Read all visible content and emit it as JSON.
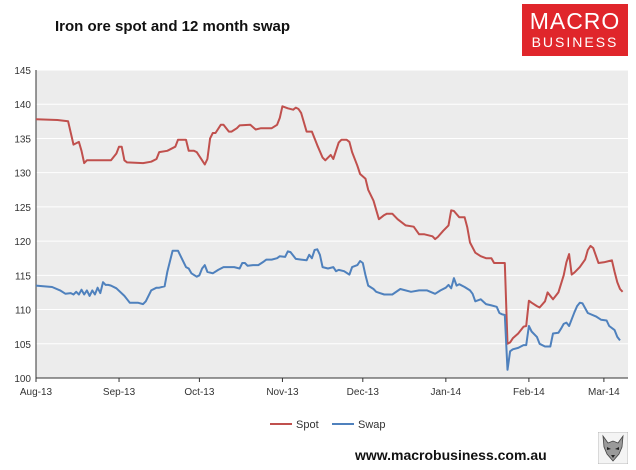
{
  "chart_data": {
    "type": "line",
    "title": "Iron ore spot and 12 month swap",
    "xlabel": "",
    "ylabel": "",
    "ylim": [
      100,
      145
    ],
    "yticks": [
      100,
      105,
      110,
      115,
      120,
      125,
      130,
      135,
      140,
      145
    ],
    "x_range": [
      0,
      221
    ],
    "x_ticks": [
      {
        "label": "Aug-13",
        "pos": 0
      },
      {
        "label": "Sep-13",
        "pos": 31
      },
      {
        "label": "Oct-13",
        "pos": 61
      },
      {
        "label": "Nov-13",
        "pos": 92
      },
      {
        "label": "Dec-13",
        "pos": 122
      },
      {
        "label": "Jan-14",
        "pos": 153
      },
      {
        "label": "Feb-14",
        "pos": 184
      },
      {
        "label": "Mar-14",
        "pos": 212
      }
    ],
    "grid": true,
    "legend": "bottom-center",
    "series": [
      {
        "name": "Spot",
        "color": "#c0504d",
        "points": [
          [
            0,
            137.8
          ],
          [
            8,
            137.7
          ],
          [
            12,
            137.5
          ],
          [
            14,
            134.1
          ],
          [
            16,
            134.5
          ],
          [
            17,
            133.2
          ],
          [
            18,
            131.4
          ],
          [
            19,
            131.8
          ],
          [
            25,
            131.8
          ],
          [
            28,
            131.8
          ],
          [
            30,
            132.8
          ],
          [
            31,
            133.8
          ],
          [
            32,
            133.8
          ],
          [
            33,
            131.8
          ],
          [
            34,
            131.5
          ],
          [
            40,
            131.4
          ],
          [
            43,
            131.6
          ],
          [
            45,
            132.0
          ],
          [
            46,
            133.0
          ],
          [
            49,
            133.2
          ],
          [
            52,
            133.8
          ],
          [
            53,
            134.8
          ],
          [
            56,
            134.8
          ],
          [
            57,
            133.2
          ],
          [
            59,
            133.2
          ],
          [
            60,
            133.0
          ],
          [
            62,
            131.8
          ],
          [
            63,
            131.2
          ],
          [
            64,
            132.0
          ],
          [
            65,
            135.0
          ],
          [
            66,
            135.8
          ],
          [
            67,
            135.8
          ],
          [
            69,
            137.0
          ],
          [
            70,
            137.0
          ],
          [
            72,
            136.0
          ],
          [
            73,
            136.0
          ],
          [
            75,
            136.5
          ],
          [
            76,
            136.9
          ],
          [
            80,
            137.0
          ],
          [
            82,
            136.3
          ],
          [
            84,
            136.5
          ],
          [
            86,
            136.5
          ],
          [
            88,
            136.5
          ],
          [
            90,
            137.0
          ],
          [
            91,
            138.0
          ],
          [
            92,
            139.7
          ],
          [
            94,
            139.4
          ],
          [
            96,
            139.2
          ],
          [
            97,
            139.5
          ],
          [
            98,
            139.3
          ],
          [
            99,
            138.7
          ],
          [
            101,
            136.0
          ],
          [
            103,
            136.0
          ],
          [
            105,
            134.0
          ],
          [
            107,
            132.2
          ],
          [
            108,
            131.8
          ],
          [
            110,
            132.6
          ],
          [
            111,
            132.0
          ],
          [
            113,
            134.4
          ],
          [
            114,
            134.8
          ],
          [
            116,
            134.8
          ],
          [
            117,
            134.5
          ],
          [
            118,
            133.0
          ],
          [
            120,
            131.0
          ],
          [
            121,
            129.8
          ],
          [
            123,
            129.1
          ],
          [
            124,
            127.5
          ],
          [
            126,
            125.9
          ],
          [
            128,
            123.2
          ],
          [
            130,
            123.8
          ],
          [
            131,
            124.0
          ],
          [
            133,
            124.0
          ],
          [
            135,
            123.2
          ],
          [
            138,
            122.3
          ],
          [
            141,
            122.1
          ],
          [
            143,
            121.0
          ],
          [
            145,
            121.0
          ],
          [
            148,
            120.7
          ],
          [
            149,
            120.3
          ],
          [
            150,
            120.6
          ],
          [
            152,
            121.5
          ],
          [
            154,
            122.3
          ],
          [
            155,
            124.5
          ],
          [
            156,
            124.4
          ],
          [
            158,
            123.5
          ],
          [
            160,
            123.5
          ],
          [
            161,
            122.0
          ],
          [
            162,
            119.8
          ],
          [
            164,
            118.3
          ],
          [
            166,
            117.8
          ],
          [
            168,
            117.5
          ],
          [
            170,
            117.5
          ],
          [
            171,
            116.8
          ],
          [
            174,
            116.8
          ],
          [
            175,
            116.8
          ],
          [
            176,
            105.0
          ],
          [
            177,
            105.2
          ],
          [
            178,
            105.8
          ],
          [
            180,
            106.5
          ],
          [
            182,
            107.5
          ],
          [
            183,
            107.6
          ],
          [
            184,
            111.3
          ],
          [
            185,
            111.0
          ],
          [
            187,
            110.5
          ],
          [
            188,
            110.3
          ],
          [
            190,
            111.2
          ],
          [
            191,
            112.5
          ],
          [
            192,
            112.0
          ],
          [
            193,
            111.5
          ],
          [
            194,
            112.0
          ],
          [
            195,
            112.5
          ],
          [
            197,
            115.0
          ],
          [
            198,
            116.9
          ],
          [
            199,
            118.1
          ],
          [
            200,
            115.1
          ],
          [
            201,
            115.4
          ],
          [
            203,
            116.2
          ],
          [
            205,
            117.3
          ],
          [
            206,
            118.7
          ],
          [
            207,
            119.3
          ],
          [
            208,
            119.0
          ],
          [
            210,
            116.8
          ],
          [
            212,
            116.9
          ],
          [
            214,
            117.1
          ],
          [
            215,
            117.2
          ],
          [
            216,
            115.5
          ],
          [
            217,
            114.0
          ],
          [
            218,
            113.0
          ],
          [
            219,
            112.6
          ]
        ]
      },
      {
        "name": "Swap",
        "color": "#4f81bd",
        "points": [
          [
            0,
            113.5
          ],
          [
            6,
            113.3
          ],
          [
            9,
            112.8
          ],
          [
            11,
            112.3
          ],
          [
            13,
            112.4
          ],
          [
            14,
            112.2
          ],
          [
            15,
            112.6
          ],
          [
            16,
            112.2
          ],
          [
            17,
            112.9
          ],
          [
            18,
            112.2
          ],
          [
            19,
            112.8
          ],
          [
            20,
            112.0
          ],
          [
            21,
            112.8
          ],
          [
            22,
            112.2
          ],
          [
            23,
            113.2
          ],
          [
            24,
            112.4
          ],
          [
            25,
            114.0
          ],
          [
            26,
            113.6
          ],
          [
            27,
            113.6
          ],
          [
            28,
            113.5
          ],
          [
            30,
            113.1
          ],
          [
            33,
            112.0
          ],
          [
            35,
            111.0
          ],
          [
            38,
            111.0
          ],
          [
            40,
            110.8
          ],
          [
            41,
            111.2
          ],
          [
            43,
            112.8
          ],
          [
            45,
            113.2
          ],
          [
            46,
            113.2
          ],
          [
            48,
            113.4
          ],
          [
            49,
            115.5
          ],
          [
            51,
            118.6
          ],
          [
            53,
            118.6
          ],
          [
            55,
            117.0
          ],
          [
            56,
            116.2
          ],
          [
            57,
            116.0
          ],
          [
            58,
            115.3
          ],
          [
            60,
            114.8
          ],
          [
            61,
            115.0
          ],
          [
            62,
            116.0
          ],
          [
            63,
            116.5
          ],
          [
            64,
            115.5
          ],
          [
            66,
            115.3
          ],
          [
            68,
            115.8
          ],
          [
            70,
            116.2
          ],
          [
            74,
            116.2
          ],
          [
            76,
            116.0
          ],
          [
            77,
            116.8
          ],
          [
            78,
            116.8
          ],
          [
            79,
            116.4
          ],
          [
            81,
            116.5
          ],
          [
            83,
            116.5
          ],
          [
            85,
            117.0
          ],
          [
            86,
            117.3
          ],
          [
            88,
            117.3
          ],
          [
            90,
            117.5
          ],
          [
            91,
            117.8
          ],
          [
            93,
            117.7
          ],
          [
            94,
            118.5
          ],
          [
            95,
            118.4
          ],
          [
            97,
            117.4
          ],
          [
            99,
            117.3
          ],
          [
            101,
            117.2
          ],
          [
            102,
            118.0
          ],
          [
            103,
            117.5
          ],
          [
            104,
            118.7
          ],
          [
            105,
            118.8
          ],
          [
            106,
            118.0
          ],
          [
            107,
            116.2
          ],
          [
            109,
            116.0
          ],
          [
            111,
            116.2
          ],
          [
            112,
            115.6
          ],
          [
            113,
            115.8
          ],
          [
            115,
            115.6
          ],
          [
            117,
            115.1
          ],
          [
            118,
            116.2
          ],
          [
            120,
            116.5
          ],
          [
            121,
            117.1
          ],
          [
            122,
            116.8
          ],
          [
            123,
            115.0
          ],
          [
            124,
            113.5
          ],
          [
            126,
            113.0
          ],
          [
            127,
            112.6
          ],
          [
            130,
            112.2
          ],
          [
            133,
            112.2
          ],
          [
            136,
            113.0
          ],
          [
            140,
            112.6
          ],
          [
            143,
            112.8
          ],
          [
            146,
            112.8
          ],
          [
            149,
            112.3
          ],
          [
            151,
            112.8
          ],
          [
            153,
            113.2
          ],
          [
            154,
            113.6
          ],
          [
            155,
            113.1
          ],
          [
            156,
            114.6
          ],
          [
            157,
            113.5
          ],
          [
            158,
            113.7
          ],
          [
            160,
            113.3
          ],
          [
            162,
            112.8
          ],
          [
            163,
            112.3
          ],
          [
            164,
            111.2
          ],
          [
            166,
            111.5
          ],
          [
            168,
            110.8
          ],
          [
            170,
            110.6
          ],
          [
            172,
            110.4
          ],
          [
            173,
            109.5
          ],
          [
            174,
            109.3
          ],
          [
            175,
            109.2
          ],
          [
            176,
            101.2
          ],
          [
            177,
            103.9
          ],
          [
            178,
            104.2
          ],
          [
            180,
            104.4
          ],
          [
            182,
            104.8
          ],
          [
            183,
            104.8
          ],
          [
            184,
            107.6
          ],
          [
            185,
            106.8
          ],
          [
            187,
            106.0
          ],
          [
            188,
            105.0
          ],
          [
            190,
            104.6
          ],
          [
            192,
            104.6
          ],
          [
            193,
            106.5
          ],
          [
            195,
            106.6
          ],
          [
            196,
            107.2
          ],
          [
            197,
            107.9
          ],
          [
            198,
            108.1
          ],
          [
            199,
            107.6
          ],
          [
            201,
            109.6
          ],
          [
            202,
            110.5
          ],
          [
            203,
            111.0
          ],
          [
            204,
            110.9
          ],
          [
            206,
            109.5
          ],
          [
            209,
            109.0
          ],
          [
            211,
            108.5
          ],
          [
            213,
            108.4
          ],
          [
            214,
            107.6
          ],
          [
            216,
            107.0
          ],
          [
            217,
            106.0
          ],
          [
            218,
            105.5
          ]
        ]
      }
    ]
  },
  "branding": {
    "logo_line1": "MACRO",
    "logo_line2": "BUSINESS",
    "url": "www.macrobusiness.com.au",
    "accent_color": "#e0262b"
  },
  "mascot_icon": "wolf-head-icon"
}
